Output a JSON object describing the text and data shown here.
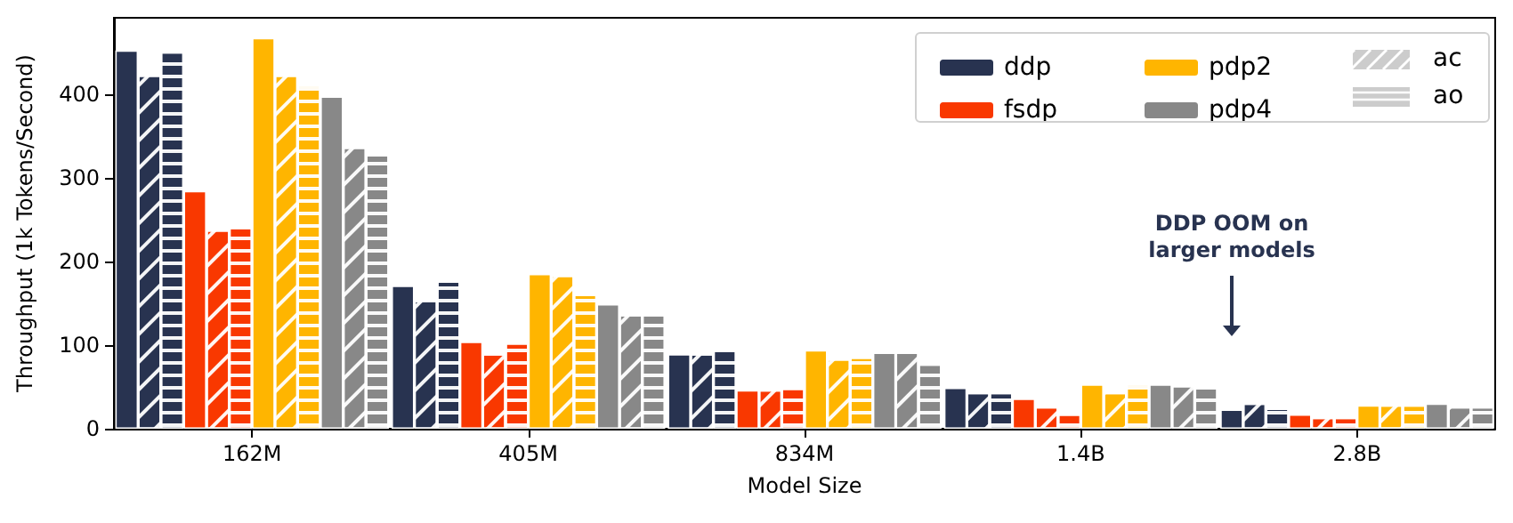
{
  "chart_data": {
    "type": "bar",
    "xlabel": "Model Size",
    "ylabel": "Throughput (1k Tokens/Second)",
    "categories": [
      "162M",
      "405M",
      "834M",
      "1.4B",
      "2.8B"
    ],
    "series": [
      {
        "name": "ddp",
        "color": "#283350",
        "values": [
          452,
          171,
          89,
          49,
          23
        ]
      },
      {
        "color": "#283350",
        "values": [
          422,
          153,
          89,
          43,
          30
        ]
      },
      {
        "color": "#283350",
        "values": [
          450,
          176,
          94,
          43,
          24
        ]
      },
      {
        "name": "fsdp",
        "color": "#f93800",
        "values": [
          284,
          104,
          46,
          36,
          17
        ]
      },
      {
        "color": "#f93800",
        "values": [
          237,
          89,
          46,
          26,
          13
        ]
      },
      {
        "color": "#f93800",
        "values": [
          240,
          102,
          48,
          17,
          13
        ]
      },
      {
        "name": "pdp2",
        "color": "#ffb500",
        "values": [
          467,
          185,
          94,
          53,
          28
        ]
      },
      {
        "color": "#ffb500",
        "values": [
          422,
          183,
          83,
          43,
          28
        ]
      },
      {
        "color": "#ffb500",
        "values": [
          410,
          160,
          85,
          53,
          28
        ]
      },
      {
        "name": "pdp4",
        "color": "#888888",
        "values": [
          397,
          149,
          91,
          53,
          30
        ]
      },
      {
        "color": "#888888",
        "values": [
          336,
          136,
          91,
          51,
          26
        ]
      },
      {
        "color": "#888888",
        "values": [
          327,
          136,
          77,
          49,
          26
        ]
      }
    ],
    "ylim": [
      0,
      491
    ],
    "yticks": [
      0,
      100,
      200,
      300,
      400
    ],
    "grid": false,
    "legend": "top right",
    "annotations": [
      "ac",
      "ao",
      "DDP OOM on\nlarger models"
    ]
  }
}
